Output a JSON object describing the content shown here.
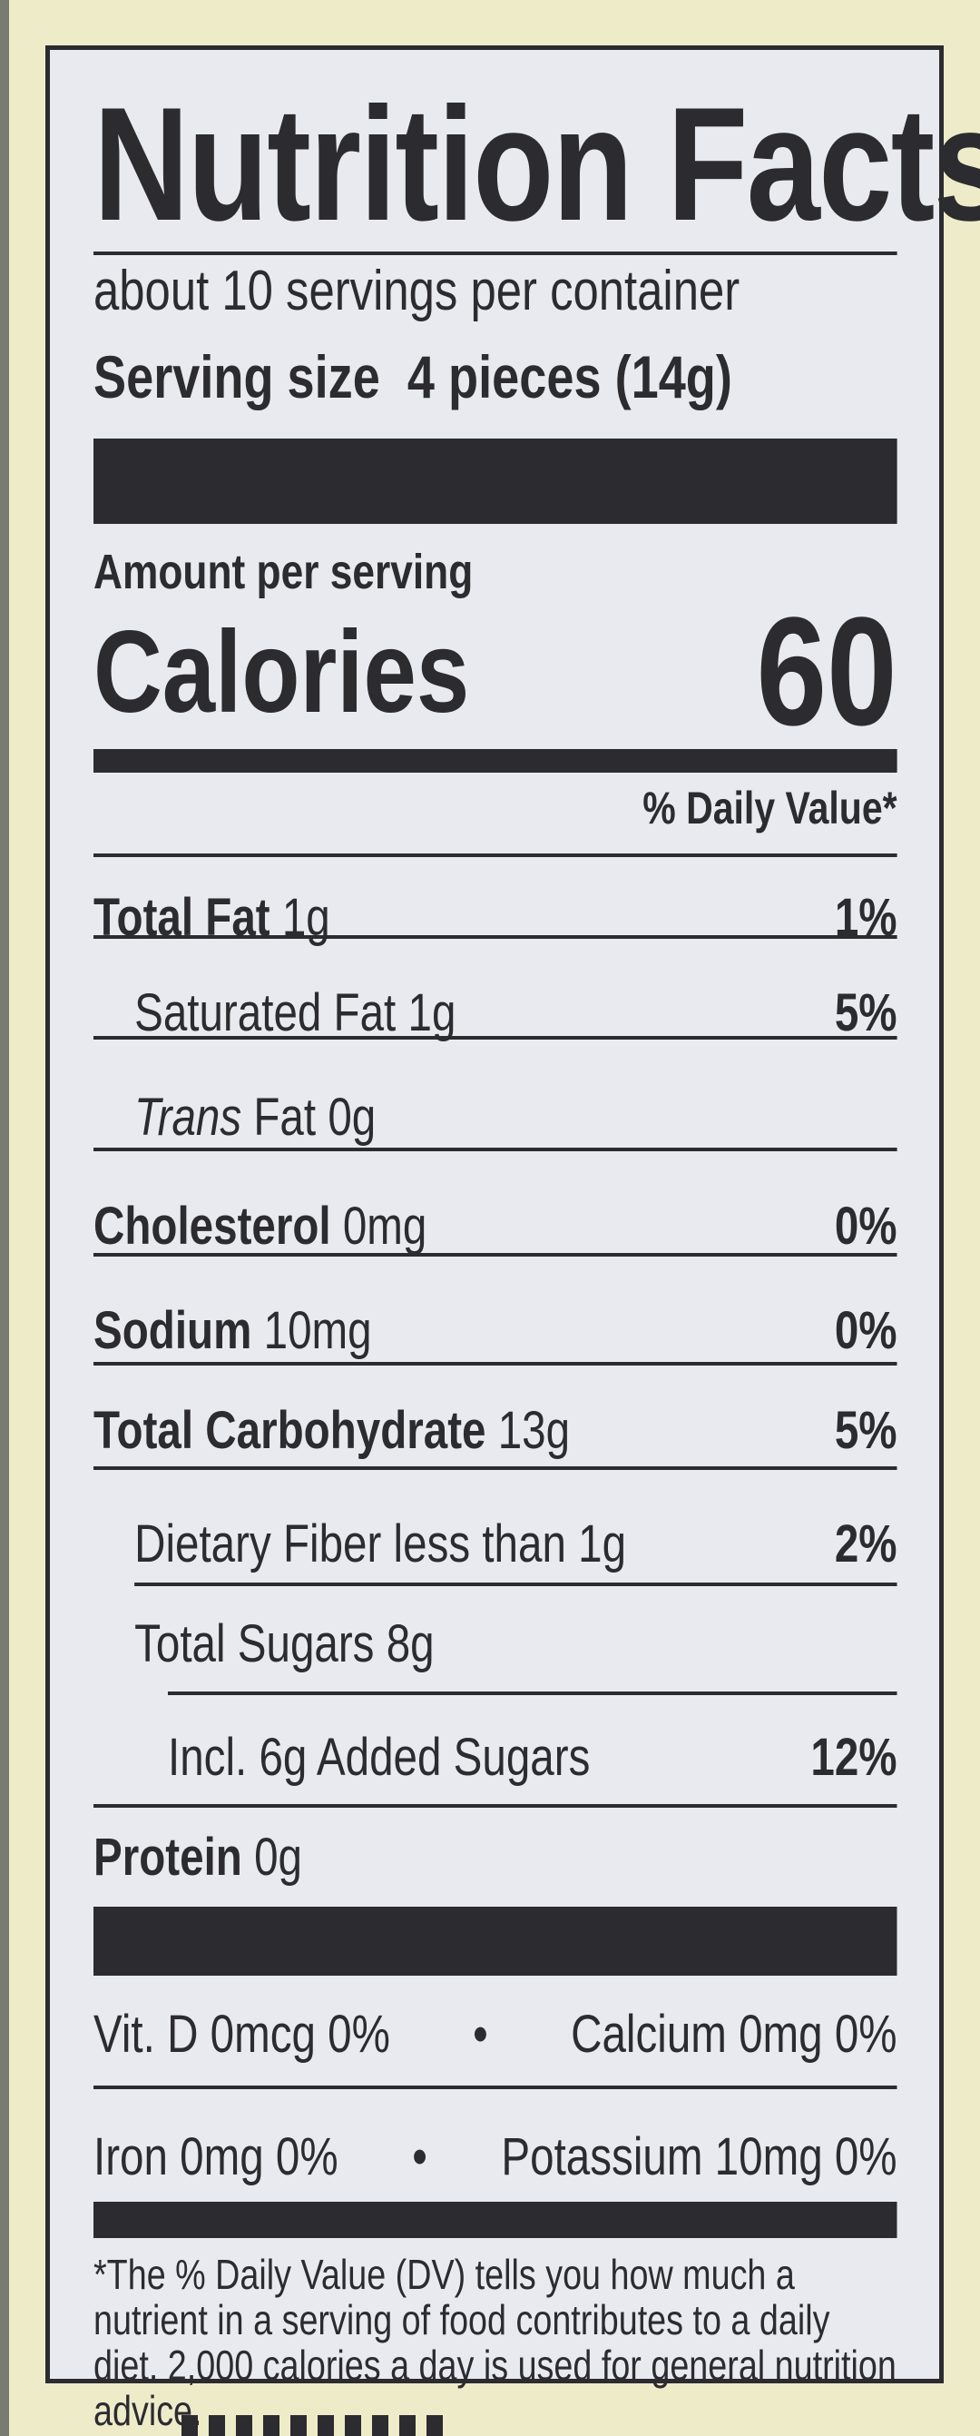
{
  "title": "Nutrition Facts",
  "servings_per_container": "about 10 servings per container",
  "serving_size_label": "Serving size",
  "serving_size_value": "4 pieces (14g)",
  "amount_per_serving": "Amount per serving",
  "calories_label": "Calories",
  "calories_value": "60",
  "daily_value_header": "% Daily Value*",
  "nutrients": [
    {
      "name": "Total Fat",
      "amount": "1g",
      "dv": "1%"
    },
    {
      "name": "Saturated Fat",
      "amount": "1g",
      "dv": "5%"
    },
    {
      "name": "Trans",
      "name_suffix": "Fat",
      "amount": "0g",
      "dv": ""
    },
    {
      "name": "Cholesterol",
      "amount": "0mg",
      "dv": "0%"
    },
    {
      "name": "Sodium",
      "amount": "10mg",
      "dv": "0%"
    },
    {
      "name": "Total Carbohydrate",
      "amount": "13g",
      "dv": "5%"
    },
    {
      "name": "Dietary Fiber",
      "amount": "less than 1g",
      "dv": "2%"
    },
    {
      "name": "Total Sugars",
      "amount": "8g",
      "dv": ""
    },
    {
      "name": "Added Sugars",
      "prefix": "Incl. 6g",
      "dv": "12%"
    },
    {
      "name": "Protein",
      "amount": "0g",
      "dv": ""
    }
  ],
  "vitamins": [
    {
      "left": "Vit. D 0mcg 0%",
      "sep": "•",
      "right": "Calcium 0mg 0%"
    },
    {
      "left": "Iron 0mg 0%",
      "sep": "•",
      "right": "Potassium 10mg 0%"
    }
  ],
  "footnote": "*The % Daily Value (DV) tells you how much a nutrient in a serving of food contributes to a daily diet. 2,000 calories a day is used for general nutrition advice."
}
